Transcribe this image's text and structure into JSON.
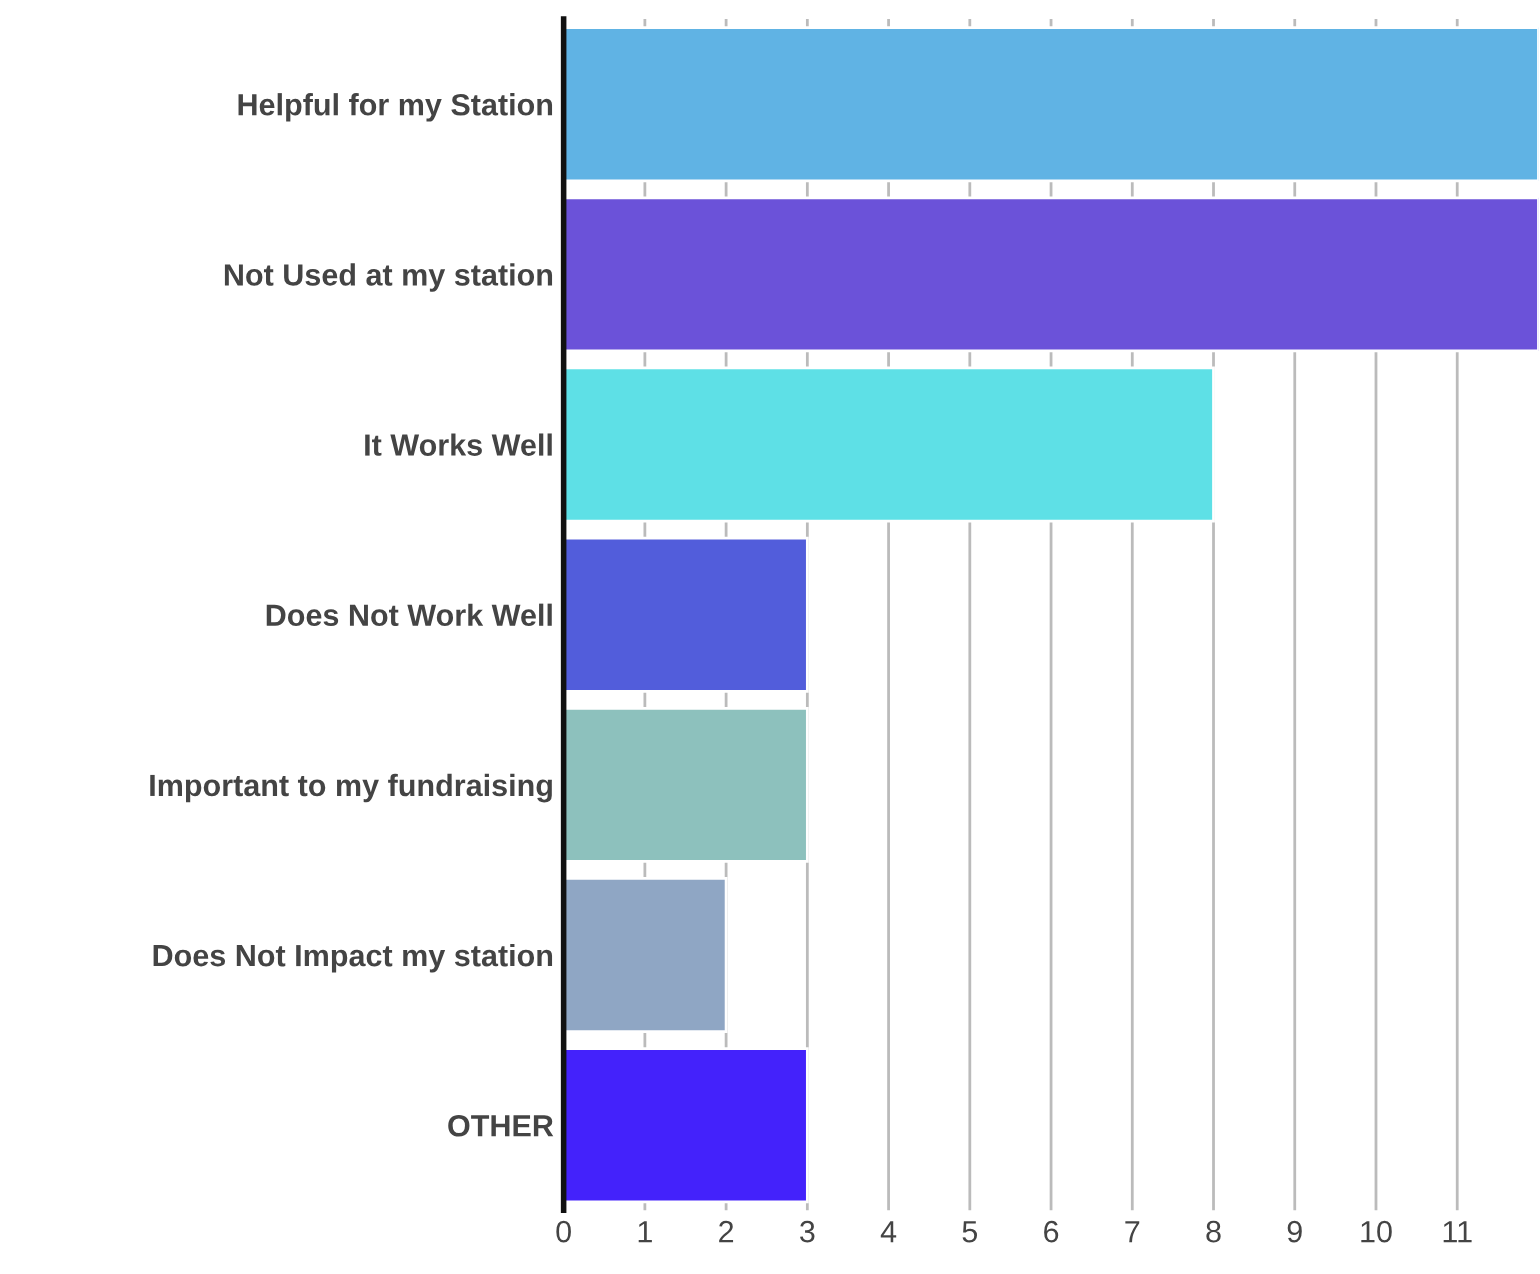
{
  "chart_data": {
    "type": "bar",
    "orientation": "horizontal",
    "categories": [
      "Helpful for my Station",
      "Not Used at my station",
      "It Works Well",
      "Does Not Work Well",
      "Important to my fundraising",
      "Does Not Impact my station",
      "OTHER"
    ],
    "values": [
      12,
      12,
      8,
      3,
      3,
      2,
      3
    ],
    "colors": [
      "#60b3e4",
      "#6b52d9",
      "#5ee0e6",
      "#525ddb",
      "#8dc1bd",
      "#8fa6c4",
      "#4422fb"
    ],
    "xlim": [
      0,
      12
    ],
    "xticks": [
      0,
      1,
      2,
      3,
      4,
      5,
      6,
      7,
      8,
      9,
      10,
      11
    ],
    "grid": "x"
  }
}
